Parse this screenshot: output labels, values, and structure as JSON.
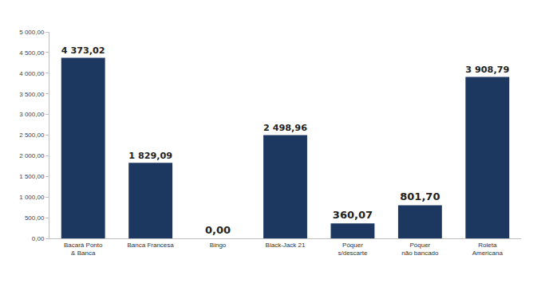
{
  "chart_data": {
    "type": "bar",
    "categories": [
      "Bacará Ponto\n& Banca",
      "Banca Francesa",
      "Bingo",
      "Black-Jack 21",
      "Póquer\ns/descarte",
      "Póquer\nnão bancado",
      "Roleta\nAmericana"
    ],
    "values": [
      4373.02,
      1829.09,
      0,
      2498.96,
      360.07,
      801.7,
      3908.79
    ],
    "value_labels": [
      "4 373,02",
      "1 829,09",
      "0,00",
      "2 498,96",
      "360,07",
      "801,70",
      "3 908,79"
    ],
    "data_labels": true,
    "color": "#1c3760",
    "ylim": [
      0,
      5000
    ],
    "yticks": [
      {
        "value": 0,
        "label": "0,00"
      },
      {
        "value": 500,
        "label": "500,00"
      },
      {
        "value": 1000,
        "label": "1 000,00"
      },
      {
        "value": 1500,
        "label": "1 500,00"
      },
      {
        "value": 2000,
        "label": "2 000,00"
      },
      {
        "value": 2500,
        "label": "2 500,00"
      },
      {
        "value": 3000,
        "label": "3 000,00"
      },
      {
        "value": 3500,
        "label": "3 500,00"
      },
      {
        "value": 4000,
        "label": "4 000,00"
      },
      {
        "value": 4500,
        "label": "4 500,00"
      },
      {
        "value": 5000,
        "label": "5 000,00"
      }
    ],
    "grid": false
  }
}
